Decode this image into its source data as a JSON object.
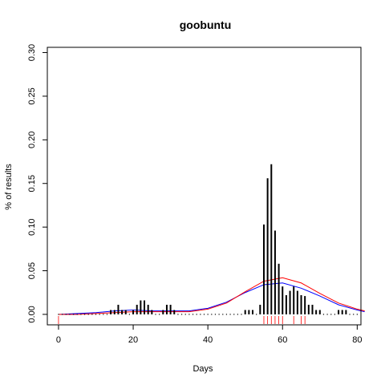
{
  "chart_data": {
    "type": "bar",
    "title": "goobuntu",
    "xlabel": "Days",
    "ylabel": "% of results",
    "xlim": [
      -3,
      81
    ],
    "ylim": [
      -0.012,
      0.306
    ],
    "x_ticks": [
      0,
      20,
      40,
      60,
      80
    ],
    "y_ticks": [
      0.0,
      0.05,
      0.1,
      0.15,
      0.2,
      0.25,
      0.3
    ],
    "y_tick_labels": [
      "0.00",
      "0.05",
      "0.10",
      "0.15",
      "0.20",
      "0.25",
      "0.30"
    ],
    "colors": {
      "bars": "#000000",
      "fit_blue": "#0000ff",
      "fit_red": "#ff0000",
      "rug": "#ff0000",
      "frame": "#000000"
    },
    "bars": {
      "x": [
        14,
        15,
        16,
        17,
        18,
        20,
        21,
        22,
        23,
        24,
        25,
        28,
        29,
        30,
        31,
        50,
        51,
        52,
        54,
        55,
        56,
        57,
        58,
        59,
        60,
        61,
        62,
        63,
        64,
        65,
        66,
        67,
        68,
        69,
        70,
        75,
        76,
        77
      ],
      "y": [
        0.005,
        0.005,
        0.011,
        0.005,
        0.005,
        0.005,
        0.011,
        0.016,
        0.016,
        0.011,
        0.005,
        0.005,
        0.011,
        0.011,
        0.005,
        0.005,
        0.005,
        0.005,
        0.011,
        0.103,
        0.156,
        0.172,
        0.096,
        0.058,
        0.032,
        0.022,
        0.027,
        0.032,
        0.027,
        0.022,
        0.021,
        0.011,
        0.011,
        0.005,
        0.005,
        0.005,
        0.005,
        0.005
      ]
    },
    "dots_x": [
      0,
      1,
      2,
      3,
      4,
      5,
      6,
      7,
      8,
      9,
      10,
      11,
      12,
      13,
      19,
      26,
      27,
      32,
      33,
      34,
      35,
      36,
      37,
      38,
      39,
      40,
      41,
      42,
      43,
      44,
      45,
      46,
      47,
      48,
      49,
      53,
      71,
      72,
      73,
      74,
      78,
      79,
      80
    ],
    "rug_x": [
      0,
      55,
      56,
      57,
      58,
      59,
      60,
      63,
      65,
      66
    ],
    "fit_blue": {
      "x": [
        0,
        5,
        10,
        15,
        20,
        25,
        30,
        35,
        40,
        45,
        50,
        55,
        60,
        65,
        70,
        75,
        80,
        82
      ],
      "y": [
        0.0,
        0.001,
        0.002,
        0.004,
        0.005,
        0.004,
        0.004,
        0.004,
        0.007,
        0.014,
        0.025,
        0.034,
        0.036,
        0.03,
        0.021,
        0.011,
        0.005,
        0.003
      ]
    },
    "fit_red": {
      "x": [
        0,
        5,
        10,
        15,
        20,
        25,
        30,
        35,
        40,
        45,
        50,
        55,
        60,
        65,
        70,
        75,
        80,
        82
      ],
      "y": [
        0.0,
        0.0,
        0.001,
        0.002,
        0.003,
        0.003,
        0.003,
        0.003,
        0.006,
        0.013,
        0.026,
        0.038,
        0.042,
        0.036,
        0.024,
        0.013,
        0.006,
        0.004
      ]
    }
  }
}
